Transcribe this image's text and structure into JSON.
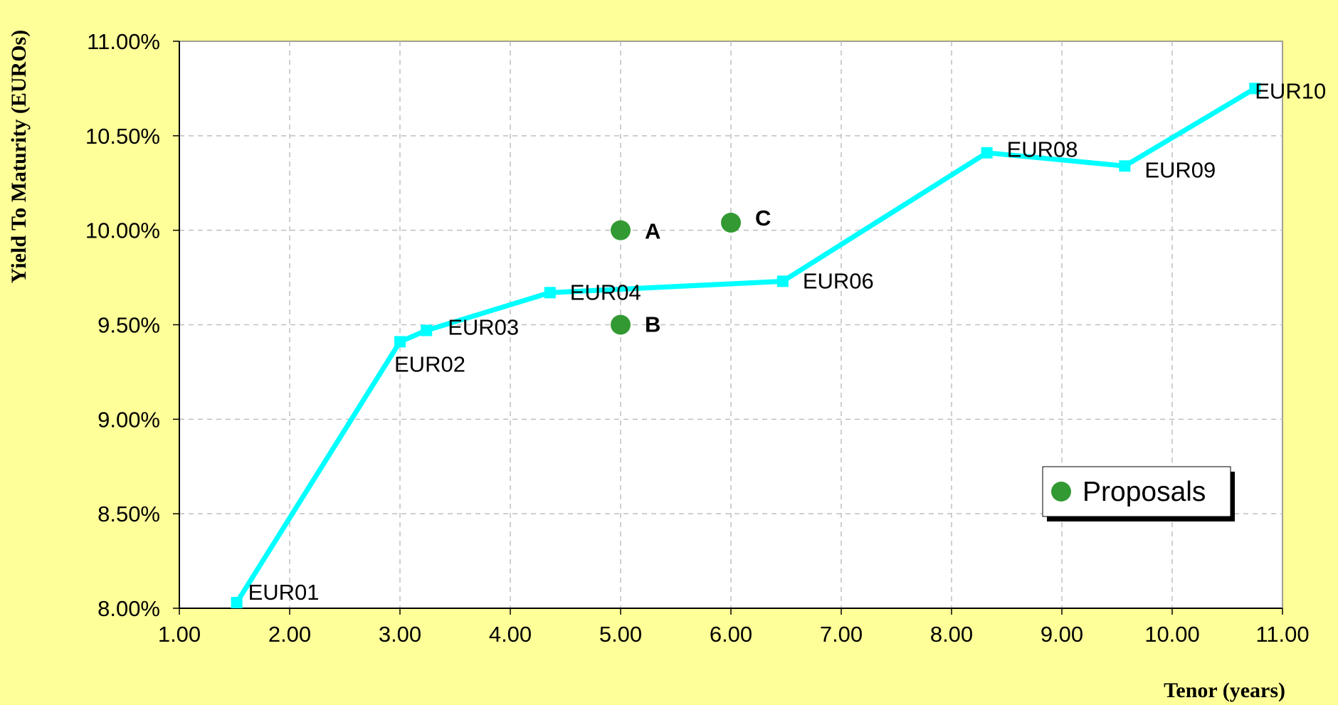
{
  "chart_data": {
    "type": "line",
    "xlabel": "Tenor (years)",
    "ylabel": "Yield To Maturity (EUROs)",
    "xlim": [
      1,
      11
    ],
    "ylim": [
      8.0,
      11.0
    ],
    "x_ticks": [
      "1.00",
      "2.00",
      "3.00",
      "4.00",
      "5.00",
      "6.00",
      "7.00",
      "8.00",
      "9.00",
      "10.00",
      "11.00"
    ],
    "y_ticks": [
      "8.00%",
      "8.50%",
      "9.00%",
      "9.50%",
      "10.00%",
      "10.50%",
      "11.00%"
    ],
    "grid": true,
    "legend_placement": "bottom-right",
    "series": [
      {
        "type": "line",
        "color": "#00FFFF",
        "points": [
          {
            "label": "EUR01",
            "x": 1.52,
            "y": 8.03
          },
          {
            "label": "EUR02",
            "x": 3.0,
            "y": 9.41
          },
          {
            "label": "EUR03",
            "x": 3.24,
            "y": 9.47
          },
          {
            "label": "EUR04",
            "x": 4.36,
            "y": 9.67
          },
          {
            "label": "EUR06",
            "x": 6.47,
            "y": 9.73
          },
          {
            "label": "EUR08",
            "x": 8.32,
            "y": 10.41
          },
          {
            "label": "EUR09",
            "x": 9.57,
            "y": 10.34
          },
          {
            "label": "EUR10",
            "x": 10.75,
            "y": 10.75
          }
        ]
      },
      {
        "name": "Proposals",
        "type": "scatter",
        "color": "#339933",
        "points": [
          {
            "label": "A",
            "x": 5.0,
            "y": 10.0
          },
          {
            "label": "B",
            "x": 5.0,
            "y": 9.5
          },
          {
            "label": "C",
            "x": 6.0,
            "y": 10.04
          }
        ]
      }
    ]
  }
}
